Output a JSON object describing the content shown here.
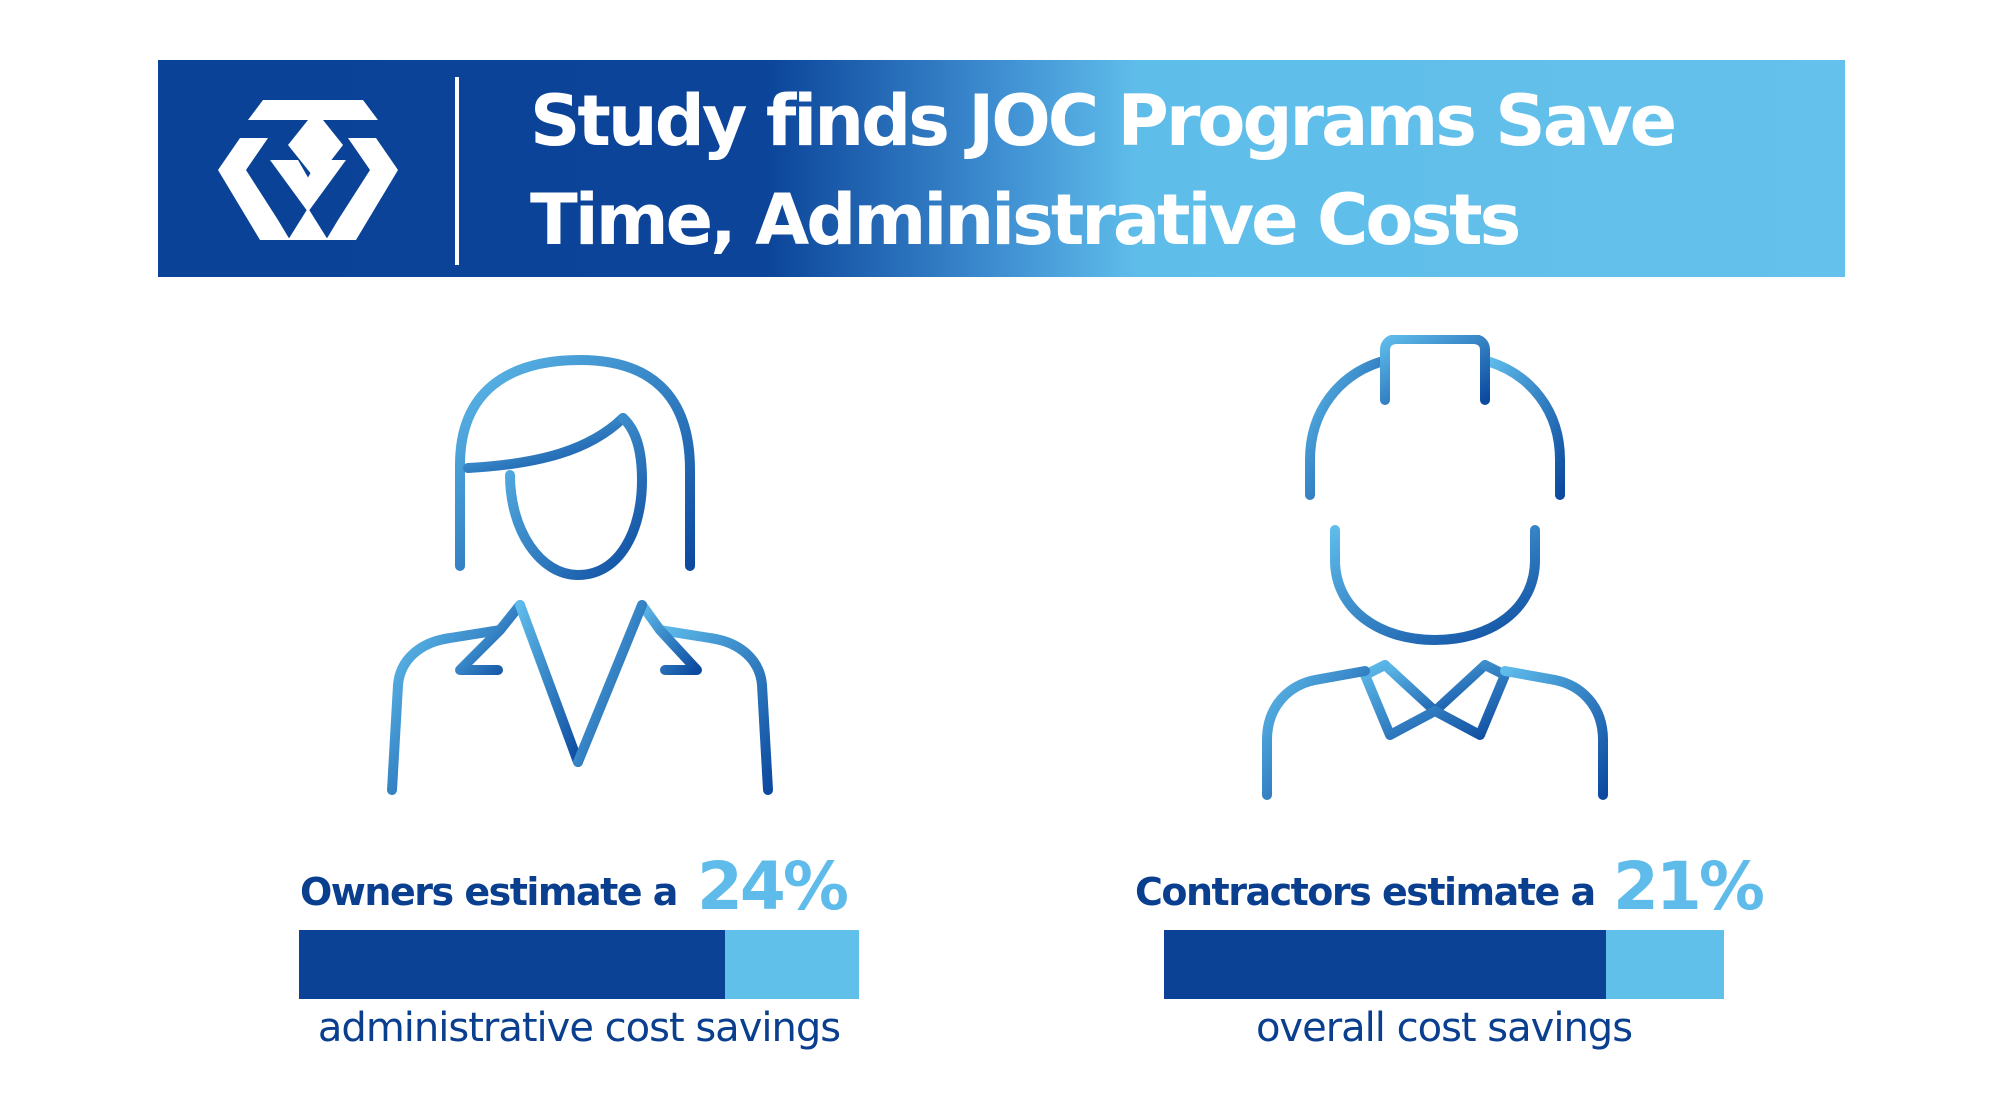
{
  "banner": {
    "logo_icon": "joc-logo-icon",
    "title_line1": "Study finds JOC Programs Save",
    "title_line2": "Time, Administrative Costs"
  },
  "owners": {
    "icon": "businesswoman-icon",
    "headline": "Owners estimate a",
    "percent_label": "24%",
    "fill_fraction": 0.76,
    "caption": "administrative cost savings"
  },
  "contractors": {
    "icon": "construction-worker-icon",
    "headline": "Contractors estimate a",
    "percent_label": "21%",
    "fill_fraction": 0.79,
    "caption": "overall cost savings"
  },
  "colors": {
    "navy": "#0b4296",
    "light_blue": "#60c0ea",
    "text_navy": "#0a3e8f"
  }
}
